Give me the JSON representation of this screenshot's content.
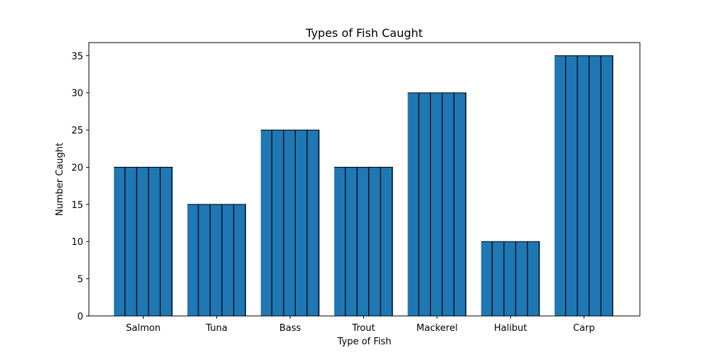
{
  "chart_data": {
    "type": "bar",
    "title": "Types of Fish Caught",
    "xlabel": "Type of Fish",
    "ylabel": "Number Caught",
    "categories": [
      "Salmon",
      "Tuna",
      "Bass",
      "Trout",
      "Mackerel",
      "Halibut",
      "Carp"
    ],
    "values": [
      20,
      15,
      25,
      20,
      30,
      10,
      35
    ],
    "ylim": [
      0,
      36.75
    ],
    "yticks": [
      0,
      5,
      10,
      15,
      20,
      25,
      30,
      35
    ],
    "grid": false,
    "bar_color": "#1f77b4",
    "bar_hatch": "vertical-lines",
    "hatch_color": "#000000"
  }
}
